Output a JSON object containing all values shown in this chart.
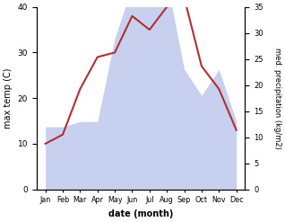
{
  "months": [
    "Jan",
    "Feb",
    "Mar",
    "Apr",
    "May",
    "Jun",
    "Jul",
    "Aug",
    "Sep",
    "Oct",
    "Nov",
    "Dec"
  ],
  "month_indices": [
    0,
    1,
    2,
    3,
    4,
    5,
    6,
    7,
    8,
    9,
    10,
    11
  ],
  "temperature": [
    10.0,
    12.0,
    22.0,
    29.0,
    30.0,
    38.0,
    35.0,
    40.0,
    42.0,
    27.0,
    22.0,
    13.0
  ],
  "precipitation": [
    12.0,
    12.0,
    13.0,
    13.0,
    29.0,
    39.0,
    36.0,
    40.0,
    23.0,
    18.0,
    23.0,
    13.0
  ],
  "temp_color": "#b03030",
  "precip_fill_color": "#c8d0f0",
  "temp_ylim": [
    0,
    40
  ],
  "temp_yticks": [
    0,
    10,
    20,
    30,
    40
  ],
  "precip_ylim": [
    0,
    35
  ],
  "precip_yticks": [
    0,
    5,
    10,
    15,
    20,
    25,
    30,
    35
  ],
  "xlabel": "date (month)",
  "ylabel_left": "max temp (C)",
  "ylabel_right": "med. precipitation (kg/m2)",
  "fig_width": 3.18,
  "fig_height": 2.47,
  "dpi": 100
}
